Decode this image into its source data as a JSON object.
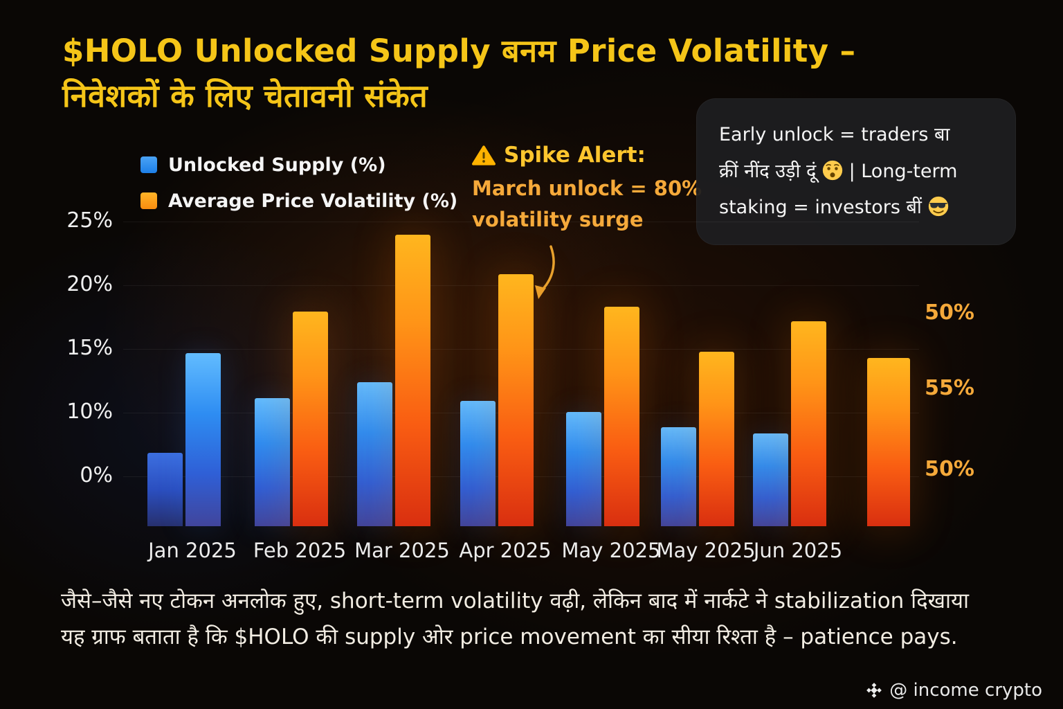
{
  "title": {
    "line1": "$HOLO Unlocked Supply बनम Price Volatility –",
    "line2": "निवेशकों के लिए चेतावनी संकेत"
  },
  "legend": [
    {
      "label": "Unlocked Supply (%)",
      "color": "#2f9bf2"
    },
    {
      "label": "Average Price Volatility (%)",
      "color": "#ff8f14"
    }
  ],
  "spike_alert": {
    "icon": "⚠️",
    "title": "Spike Alert:",
    "line1": "March unlock = 80%",
    "line2": "volatility surge",
    "color": "#ffc62e"
  },
  "callout": {
    "line1": "Early unlock = traders बा",
    "line2_pre": "क्रीं नींद उड़ी दूं",
    "emoji1": "😯",
    "line2_post": "| Long-term",
    "line3": "staking = investors बीं",
    "emoji2": "😎"
  },
  "chart_data": {
    "type": "bar",
    "title": "$HOLO Unlocked Supply बनम Price Volatility – निवेशकों के लिए चेतावनी संकेत",
    "categories": [
      "Jan 2025",
      "Feb 2025",
      "Mar 2025",
      "Apr 2025",
      "May 2025",
      "May 2025",
      "Jun 2025",
      ""
    ],
    "series": [
      {
        "name": "Unlocked Supply (%)",
        "color": "#2f9bf2",
        "color_key": "blue",
        "values": [
          6,
          10.5,
          11.8,
          10.3,
          9.4,
          8.1,
          7.6,
          null
        ]
      },
      {
        "name": "Average Price Volatility (%)",
        "color": "#ff8f14",
        "color_key": "orange",
        "values": [
          14.2,
          17.6,
          23.9,
          20.7,
          18,
          14.3,
          16.8,
          13.8
        ]
      }
    ],
    "bar_color_overrides": [
      {
        "series": 0,
        "index": 0,
        "color_key": "darkblue"
      },
      {
        "series": 1,
        "index": 0,
        "color_key": "blue"
      }
    ],
    "y_axis": {
      "tick_labels": [
        "25%",
        "20%",
        "15%",
        "10%",
        "0%"
      ],
      "range": [
        0,
        25
      ]
    },
    "right_axis_labels": [
      "50%",
      "55%",
      "50%"
    ],
    "xlabel": "",
    "ylabel": "",
    "legend_position": "top-left",
    "grid": "faint horizontal lines",
    "annotation": {
      "text": "Spike Alert: March unlock = 80% volatility surge",
      "target": "Apr 2025 volatility bar"
    }
  },
  "caption": {
    "line1": "जैसे–जैसे नए टोकन अनलोक हुए, short-term volatility वढ़ी, लेकिन बाद में नार्कटे ने stabilization दिखाया",
    "line2": "यह ग्राफ बताता है कि $HOLO की supply ओर price movement का सीया रिश्ता है – patience pays."
  },
  "footer": {
    "handle": "@ income crypto"
  },
  "colors": {
    "background": "#0a0705",
    "title_yellow": "#f5c518",
    "blue_bar": "#2f9bf2",
    "orange_bar": "#ff8f14",
    "alert_yellow": "#ffc62e",
    "right_axis_orange": "#f5a93a"
  }
}
